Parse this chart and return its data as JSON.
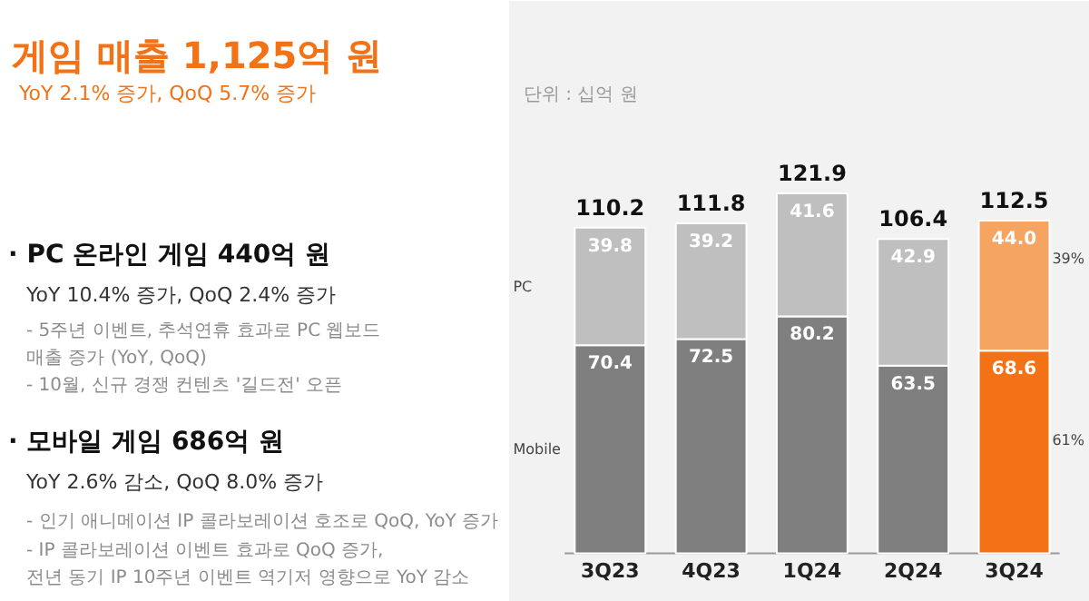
{
  "chart_data": {
    "type": "bar",
    "title": "게임 매출 1,125억 원",
    "subtitle": "YoY 2.1% 증가, QoQ 5.7% 증가",
    "categories": [
      "3Q23",
      "4Q23",
      "1Q24",
      "2Q24",
      "3Q24"
    ],
    "stacked": true,
    "series": [
      {
        "name": "Mobile",
        "colors": [
          "#7f7f7f",
          "#7f7f7f",
          "#7f7f7f",
          "#7f7f7f",
          "#f47216"
        ],
        "values": [
          70.4,
          72.5,
          80.2,
          63.5,
          68.6
        ],
        "value_labels": [
          "70.4",
          "72.5",
          "80.2",
          "63.5",
          "68.6"
        ]
      },
      {
        "name": "PC",
        "colors": [
          "#bfbfbf",
          "#bfbfbf",
          "#bfbfbf",
          "#bfbfbf",
          "#f5a462"
        ],
        "values": [
          39.8,
          39.2,
          41.6,
          42.9,
          44.0
        ],
        "value_labels": [
          "39.8",
          "39.2",
          "41.6",
          "42.9",
          "44.0"
        ]
      }
    ],
    "totals": [
      "110.2",
      "111.8",
      "121.9",
      "106.4",
      "112.5"
    ],
    "annotations": [
      "단위 : 십억 원",
      "· PC 온라인 게임 440억 원",
      "YoY 10.4% 증가, QoQ 2.4% 증가",
      "- 5주년 이벤트, 추석연휴 효과로 PC 웹보드\n  매출 증가 (YoY, QoQ)",
      "- 10월, 신규 경쟁 컨텐츠 '길드전' 오픈",
      "· 모바일 게임 686억 원",
      "YoY 2.6% 감소, QoQ 8.0% 증가",
      "- 인기 애니메이션 IP 콜라보레이션 호조로 QoQ, YoY 증가",
      "- IP 콜라보레이션 이벤트 효과로 QoQ 증가,\n  전년 동기 IP 10주년 이벤트 역기저 영향으로 YoY 감소",
      "39%",
      "61%"
    ]
  }
}
